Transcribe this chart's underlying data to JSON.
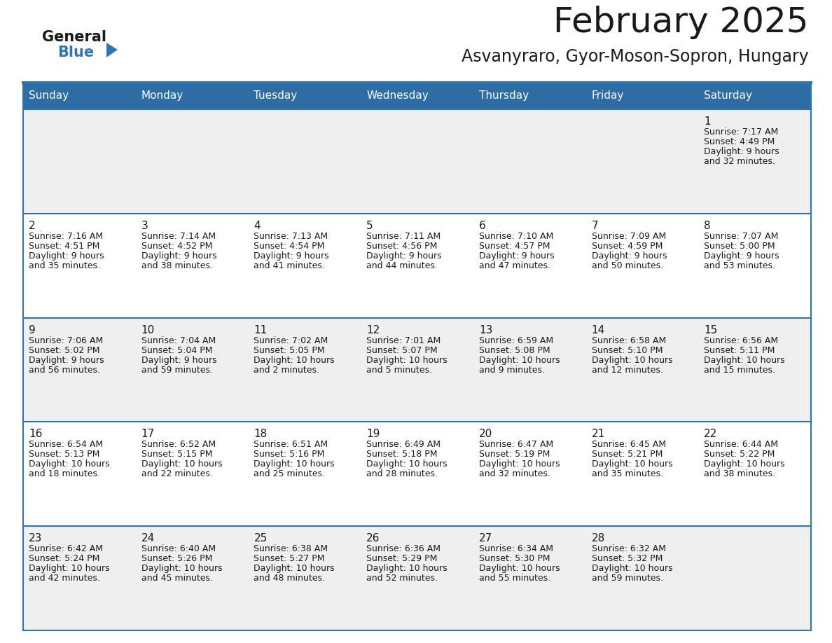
{
  "title": "February 2025",
  "subtitle": "Asvanyraro, Gyor-Moson-Sopron, Hungary",
  "header_bg": "#2e6da4",
  "header_text": "#ffffff",
  "header_days": [
    "Sunday",
    "Monday",
    "Tuesday",
    "Wednesday",
    "Thursday",
    "Friday",
    "Saturday"
  ],
  "row_bg_odd": "#efefef",
  "row_bg_even": "#ffffff",
  "cell_border": "#2e75b6",
  "day_number_color": "#1a1a1a",
  "info_text_color": "#1a1a1a",
  "logo_general_color": "#1a1a1a",
  "logo_blue_color": "#2e75b6",
  "days": [
    {
      "date": 1,
      "col": 6,
      "row": 0,
      "sunrise": "7:17 AM",
      "sunset": "4:49 PM",
      "daylight_h": "9 hours",
      "daylight_m": "and 32 minutes."
    },
    {
      "date": 2,
      "col": 0,
      "row": 1,
      "sunrise": "7:16 AM",
      "sunset": "4:51 PM",
      "daylight_h": "9 hours",
      "daylight_m": "and 35 minutes."
    },
    {
      "date": 3,
      "col": 1,
      "row": 1,
      "sunrise": "7:14 AM",
      "sunset": "4:52 PM",
      "daylight_h": "9 hours",
      "daylight_m": "and 38 minutes."
    },
    {
      "date": 4,
      "col": 2,
      "row": 1,
      "sunrise": "7:13 AM",
      "sunset": "4:54 PM",
      "daylight_h": "9 hours",
      "daylight_m": "and 41 minutes."
    },
    {
      "date": 5,
      "col": 3,
      "row": 1,
      "sunrise": "7:11 AM",
      "sunset": "4:56 PM",
      "daylight_h": "9 hours",
      "daylight_m": "and 44 minutes."
    },
    {
      "date": 6,
      "col": 4,
      "row": 1,
      "sunrise": "7:10 AM",
      "sunset": "4:57 PM",
      "daylight_h": "9 hours",
      "daylight_m": "and 47 minutes."
    },
    {
      "date": 7,
      "col": 5,
      "row": 1,
      "sunrise": "7:09 AM",
      "sunset": "4:59 PM",
      "daylight_h": "9 hours",
      "daylight_m": "and 50 minutes."
    },
    {
      "date": 8,
      "col": 6,
      "row": 1,
      "sunrise": "7:07 AM",
      "sunset": "5:00 PM",
      "daylight_h": "9 hours",
      "daylight_m": "and 53 minutes."
    },
    {
      "date": 9,
      "col": 0,
      "row": 2,
      "sunrise": "7:06 AM",
      "sunset": "5:02 PM",
      "daylight_h": "9 hours",
      "daylight_m": "and 56 minutes."
    },
    {
      "date": 10,
      "col": 1,
      "row": 2,
      "sunrise": "7:04 AM",
      "sunset": "5:04 PM",
      "daylight_h": "9 hours",
      "daylight_m": "and 59 minutes."
    },
    {
      "date": 11,
      "col": 2,
      "row": 2,
      "sunrise": "7:02 AM",
      "sunset": "5:05 PM",
      "daylight_h": "10 hours",
      "daylight_m": "and 2 minutes."
    },
    {
      "date": 12,
      "col": 3,
      "row": 2,
      "sunrise": "7:01 AM",
      "sunset": "5:07 PM",
      "daylight_h": "10 hours",
      "daylight_m": "and 5 minutes."
    },
    {
      "date": 13,
      "col": 4,
      "row": 2,
      "sunrise": "6:59 AM",
      "sunset": "5:08 PM",
      "daylight_h": "10 hours",
      "daylight_m": "and 9 minutes."
    },
    {
      "date": 14,
      "col": 5,
      "row": 2,
      "sunrise": "6:58 AM",
      "sunset": "5:10 PM",
      "daylight_h": "10 hours",
      "daylight_m": "and 12 minutes."
    },
    {
      "date": 15,
      "col": 6,
      "row": 2,
      "sunrise": "6:56 AM",
      "sunset": "5:11 PM",
      "daylight_h": "10 hours",
      "daylight_m": "and 15 minutes."
    },
    {
      "date": 16,
      "col": 0,
      "row": 3,
      "sunrise": "6:54 AM",
      "sunset": "5:13 PM",
      "daylight_h": "10 hours",
      "daylight_m": "and 18 minutes."
    },
    {
      "date": 17,
      "col": 1,
      "row": 3,
      "sunrise": "6:52 AM",
      "sunset": "5:15 PM",
      "daylight_h": "10 hours",
      "daylight_m": "and 22 minutes."
    },
    {
      "date": 18,
      "col": 2,
      "row": 3,
      "sunrise": "6:51 AM",
      "sunset": "5:16 PM",
      "daylight_h": "10 hours",
      "daylight_m": "and 25 minutes."
    },
    {
      "date": 19,
      "col": 3,
      "row": 3,
      "sunrise": "6:49 AM",
      "sunset": "5:18 PM",
      "daylight_h": "10 hours",
      "daylight_m": "and 28 minutes."
    },
    {
      "date": 20,
      "col": 4,
      "row": 3,
      "sunrise": "6:47 AM",
      "sunset": "5:19 PM",
      "daylight_h": "10 hours",
      "daylight_m": "and 32 minutes."
    },
    {
      "date": 21,
      "col": 5,
      "row": 3,
      "sunrise": "6:45 AM",
      "sunset": "5:21 PM",
      "daylight_h": "10 hours",
      "daylight_m": "and 35 minutes."
    },
    {
      "date": 22,
      "col": 6,
      "row": 3,
      "sunrise": "6:44 AM",
      "sunset": "5:22 PM",
      "daylight_h": "10 hours",
      "daylight_m": "and 38 minutes."
    },
    {
      "date": 23,
      "col": 0,
      "row": 4,
      "sunrise": "6:42 AM",
      "sunset": "5:24 PM",
      "daylight_h": "10 hours",
      "daylight_m": "and 42 minutes."
    },
    {
      "date": 24,
      "col": 1,
      "row": 4,
      "sunrise": "6:40 AM",
      "sunset": "5:26 PM",
      "daylight_h": "10 hours",
      "daylight_m": "and 45 minutes."
    },
    {
      "date": 25,
      "col": 2,
      "row": 4,
      "sunrise": "6:38 AM",
      "sunset": "5:27 PM",
      "daylight_h": "10 hours",
      "daylight_m": "and 48 minutes."
    },
    {
      "date": 26,
      "col": 3,
      "row": 4,
      "sunrise": "6:36 AM",
      "sunset": "5:29 PM",
      "daylight_h": "10 hours",
      "daylight_m": "and 52 minutes."
    },
    {
      "date": 27,
      "col": 4,
      "row": 4,
      "sunrise": "6:34 AM",
      "sunset": "5:30 PM",
      "daylight_h": "10 hours",
      "daylight_m": "and 55 minutes."
    },
    {
      "date": 28,
      "col": 5,
      "row": 4,
      "sunrise": "6:32 AM",
      "sunset": "5:32 PM",
      "daylight_h": "10 hours",
      "daylight_m": "and 59 minutes."
    }
  ],
  "num_rows": 5,
  "num_cols": 7
}
